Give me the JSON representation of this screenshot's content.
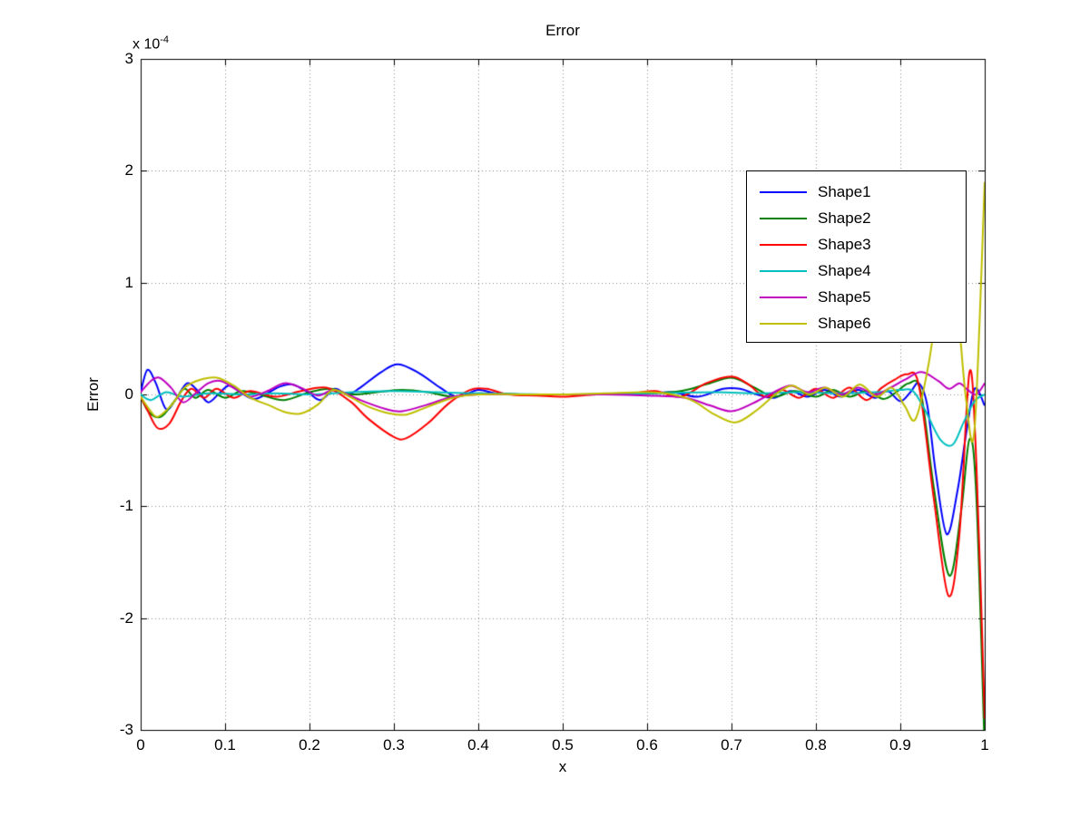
{
  "chart_data": {
    "type": "line",
    "title": "Error",
    "xlabel": "x",
    "ylabel": "Error",
    "y_scale_label": {
      "prefix": "x 10",
      "exponent": "-4"
    },
    "y_unit": "1e-4",
    "xlim": [
      0,
      1
    ],
    "ylim_e4": [
      -3,
      3
    ],
    "grid": true,
    "grid_style": "dotted",
    "legend_position": "upper-right-inside",
    "xticks": [
      "0",
      "0.1",
      "0.2",
      "0.3",
      "0.4",
      "0.5",
      "0.6",
      "0.7",
      "0.8",
      "0.9",
      "1"
    ],
    "yticks": [
      "3",
      "2",
      "1",
      "0",
      "-1",
      "-2",
      "-3"
    ],
    "series": [
      {
        "name": "Shape1",
        "color": "#0000FF",
        "points": [
          [
            0,
            0.02
          ],
          [
            0.008,
            0.22
          ],
          [
            0.018,
            0.1
          ],
          [
            0.03,
            -0.13
          ],
          [
            0.042,
            -0.04
          ],
          [
            0.055,
            0.1
          ],
          [
            0.068,
            0.03
          ],
          [
            0.08,
            -0.07
          ],
          [
            0.093,
            0.01
          ],
          [
            0.105,
            0.08
          ],
          [
            0.12,
            0.01
          ],
          [
            0.135,
            -0.04
          ],
          [
            0.15,
            0.01
          ],
          [
            0.165,
            0.07
          ],
          [
            0.18,
            0.09
          ],
          [
            0.198,
            0.02
          ],
          [
            0.213,
            -0.05
          ],
          [
            0.23,
            0.05
          ],
          [
            0.245,
            0.0
          ],
          [
            0.26,
            0.06
          ],
          [
            0.285,
            0.2
          ],
          [
            0.305,
            0.27
          ],
          [
            0.33,
            0.19
          ],
          [
            0.355,
            0.06
          ],
          [
            0.375,
            -0.02
          ],
          [
            0.4,
            0.04
          ],
          [
            0.42,
            0.01
          ],
          [
            0.45,
            0.0
          ],
          [
            0.5,
            0.0
          ],
          [
            0.55,
            0.0
          ],
          [
            0.6,
            0.01
          ],
          [
            0.63,
            0.02
          ],
          [
            0.66,
            -0.02
          ],
          [
            0.69,
            0.05
          ],
          [
            0.71,
            0.05
          ],
          [
            0.73,
            0.0
          ],
          [
            0.75,
            -0.03
          ],
          [
            0.77,
            0.03
          ],
          [
            0.79,
            -0.02
          ],
          [
            0.81,
            0.04
          ],
          [
            0.83,
            -0.02
          ],
          [
            0.85,
            0.04
          ],
          [
            0.87,
            -0.03
          ],
          [
            0.885,
            0.03
          ],
          [
            0.9,
            -0.06
          ],
          [
            0.912,
            0.02
          ],
          [
            0.922,
            0.1
          ],
          [
            0.932,
            -0.1
          ],
          [
            0.942,
            -0.7
          ],
          [
            0.955,
            -1.25
          ],
          [
            0.968,
            -0.85
          ],
          [
            0.978,
            -0.35
          ],
          [
            0.988,
            0.05
          ],
          [
            1,
            -0.1
          ]
        ]
      },
      {
        "name": "Shape2",
        "color": "#008000",
        "points": [
          [
            0,
            -0.02
          ],
          [
            0.01,
            -0.16
          ],
          [
            0.024,
            -0.2
          ],
          [
            0.04,
            -0.06
          ],
          [
            0.052,
            0.05
          ],
          [
            0.065,
            -0.03
          ],
          [
            0.08,
            0.04
          ],
          [
            0.1,
            -0.03
          ],
          [
            0.12,
            0.03
          ],
          [
            0.145,
            -0.01
          ],
          [
            0.17,
            -0.05
          ],
          [
            0.2,
            0.02
          ],
          [
            0.225,
            0.05
          ],
          [
            0.25,
            0.0
          ],
          [
            0.28,
            0.02
          ],
          [
            0.31,
            0.04
          ],
          [
            0.34,
            0.02
          ],
          [
            0.37,
            -0.02
          ],
          [
            0.4,
            0.01
          ],
          [
            0.45,
            0.0
          ],
          [
            0.5,
            0.0
          ],
          [
            0.55,
            0.0
          ],
          [
            0.6,
            0.01
          ],
          [
            0.64,
            0.03
          ],
          [
            0.67,
            0.09
          ],
          [
            0.7,
            0.15
          ],
          [
            0.725,
            0.07
          ],
          [
            0.75,
            -0.02
          ],
          [
            0.775,
            0.03
          ],
          [
            0.8,
            -0.02
          ],
          [
            0.82,
            0.04
          ],
          [
            0.84,
            -0.02
          ],
          [
            0.86,
            0.03
          ],
          [
            0.88,
            -0.04
          ],
          [
            0.895,
            0.02
          ],
          [
            0.91,
            0.1
          ],
          [
            0.924,
            0.03
          ],
          [
            0.94,
            -0.85
          ],
          [
            0.958,
            -1.62
          ],
          [
            0.972,
            -1.05
          ],
          [
            0.982,
            -0.4
          ],
          [
            0.99,
            -0.9
          ],
          [
            1,
            -3.2
          ]
        ]
      },
      {
        "name": "Shape3",
        "color": "#FF0000",
        "points": [
          [
            0,
            -0.02
          ],
          [
            0.008,
            -0.14
          ],
          [
            0.02,
            -0.3
          ],
          [
            0.034,
            -0.26
          ],
          [
            0.048,
            -0.06
          ],
          [
            0.06,
            0.05
          ],
          [
            0.075,
            -0.03
          ],
          [
            0.09,
            0.05
          ],
          [
            0.11,
            -0.03
          ],
          [
            0.13,
            0.03
          ],
          [
            0.16,
            -0.02
          ],
          [
            0.19,
            0.03
          ],
          [
            0.22,
            0.06
          ],
          [
            0.248,
            -0.06
          ],
          [
            0.27,
            -0.22
          ],
          [
            0.3,
            -0.38
          ],
          [
            0.315,
            -0.39
          ],
          [
            0.34,
            -0.26
          ],
          [
            0.365,
            -0.08
          ],
          [
            0.39,
            0.04
          ],
          [
            0.41,
            0.05
          ],
          [
            0.435,
            0.0
          ],
          [
            0.47,
            -0.01
          ],
          [
            0.5,
            -0.02
          ],
          [
            0.54,
            0.0
          ],
          [
            0.58,
            0.01
          ],
          [
            0.61,
            0.03
          ],
          [
            0.64,
            -0.02
          ],
          [
            0.67,
            0.1
          ],
          [
            0.7,
            0.16
          ],
          [
            0.72,
            0.09
          ],
          [
            0.74,
            -0.02
          ],
          [
            0.76,
            0.04
          ],
          [
            0.78,
            -0.03
          ],
          [
            0.8,
            0.05
          ],
          [
            0.82,
            -0.03
          ],
          [
            0.84,
            0.06
          ],
          [
            0.86,
            -0.05
          ],
          [
            0.878,
            0.06
          ],
          [
            0.893,
            0.13
          ],
          [
            0.908,
            0.18
          ],
          [
            0.922,
            0.08
          ],
          [
            0.94,
            -0.95
          ],
          [
            0.957,
            -1.8
          ],
          [
            0.97,
            -1.25
          ],
          [
            0.982,
            0.2
          ],
          [
            0.99,
            -0.6
          ],
          [
            1,
            -2.9
          ]
        ]
      },
      {
        "name": "Shape4",
        "color": "#00BFBF",
        "points": [
          [
            0,
            0.0
          ],
          [
            0.012,
            -0.05
          ],
          [
            0.03,
            0.02
          ],
          [
            0.05,
            -0.02
          ],
          [
            0.08,
            0.01
          ],
          [
            0.12,
            0.0
          ],
          [
            0.16,
            0.01
          ],
          [
            0.2,
            0.0
          ],
          [
            0.25,
            0.02
          ],
          [
            0.3,
            0.03
          ],
          [
            0.35,
            0.02
          ],
          [
            0.4,
            0.01
          ],
          [
            0.5,
            0.0
          ],
          [
            0.6,
            0.01
          ],
          [
            0.68,
            0.02
          ],
          [
            0.73,
            0.01
          ],
          [
            0.78,
            0.02
          ],
          [
            0.83,
            0.01
          ],
          [
            0.87,
            0.02
          ],
          [
            0.9,
            0.04
          ],
          [
            0.915,
            0.03
          ],
          [
            0.93,
            -0.15
          ],
          [
            0.947,
            -0.4
          ],
          [
            0.962,
            -0.45
          ],
          [
            0.975,
            -0.25
          ],
          [
            0.988,
            -0.06
          ],
          [
            1,
            0.0
          ]
        ]
      },
      {
        "name": "Shape5",
        "color": "#BF00BF",
        "points": [
          [
            0,
            0.02
          ],
          [
            0.012,
            0.12
          ],
          [
            0.022,
            0.15
          ],
          [
            0.036,
            0.06
          ],
          [
            0.05,
            -0.07
          ],
          [
            0.065,
            0.01
          ],
          [
            0.08,
            0.1
          ],
          [
            0.095,
            0.12
          ],
          [
            0.112,
            0.05
          ],
          [
            0.13,
            -0.02
          ],
          [
            0.15,
            0.03
          ],
          [
            0.17,
            0.1
          ],
          [
            0.19,
            0.06
          ],
          [
            0.21,
            -0.01
          ],
          [
            0.23,
            0.04
          ],
          [
            0.26,
            -0.05
          ],
          [
            0.29,
            -0.13
          ],
          [
            0.31,
            -0.15
          ],
          [
            0.34,
            -0.09
          ],
          [
            0.37,
            -0.02
          ],
          [
            0.4,
            0.0
          ],
          [
            0.45,
            0.0
          ],
          [
            0.5,
            0.0
          ],
          [
            0.55,
            0.0
          ],
          [
            0.6,
            -0.01
          ],
          [
            0.645,
            -0.03
          ],
          [
            0.675,
            -0.1
          ],
          [
            0.7,
            -0.15
          ],
          [
            0.725,
            -0.08
          ],
          [
            0.75,
            0.02
          ],
          [
            0.77,
            0.08
          ],
          [
            0.79,
            0.02
          ],
          [
            0.81,
            0.06
          ],
          [
            0.83,
            0.0
          ],
          [
            0.85,
            0.06
          ],
          [
            0.87,
            0.0
          ],
          [
            0.888,
            0.06
          ],
          [
            0.905,
            0.13
          ],
          [
            0.925,
            0.2
          ],
          [
            0.945,
            0.12
          ],
          [
            0.958,
            0.05
          ],
          [
            0.97,
            0.1
          ],
          [
            0.98,
            0.04
          ],
          [
            0.99,
            0.0
          ],
          [
            1,
            0.1
          ]
        ]
      },
      {
        "name": "Shape6",
        "color": "#BFBF00",
        "points": [
          [
            0,
            -0.02
          ],
          [
            0.01,
            -0.13
          ],
          [
            0.02,
            -0.2
          ],
          [
            0.036,
            -0.1
          ],
          [
            0.052,
            0.06
          ],
          [
            0.07,
            0.13
          ],
          [
            0.09,
            0.15
          ],
          [
            0.11,
            0.08
          ],
          [
            0.13,
            -0.03
          ],
          [
            0.15,
            -0.09
          ],
          [
            0.172,
            -0.16
          ],
          [
            0.19,
            -0.17
          ],
          [
            0.21,
            -0.09
          ],
          [
            0.228,
            0.04
          ],
          [
            0.25,
            -0.03
          ],
          [
            0.27,
            -0.11
          ],
          [
            0.295,
            -0.17
          ],
          [
            0.315,
            -0.18
          ],
          [
            0.34,
            -0.11
          ],
          [
            0.37,
            -0.03
          ],
          [
            0.4,
            0.0
          ],
          [
            0.45,
            0.0
          ],
          [
            0.5,
            0.0
          ],
          [
            0.55,
            0.01
          ],
          [
            0.6,
            0.02
          ],
          [
            0.63,
            0.0
          ],
          [
            0.655,
            -0.06
          ],
          [
            0.68,
            -0.18
          ],
          [
            0.705,
            -0.25
          ],
          [
            0.73,
            -0.14
          ],
          [
            0.752,
            0.0
          ],
          [
            0.772,
            0.08
          ],
          [
            0.792,
            0.0
          ],
          [
            0.812,
            0.06
          ],
          [
            0.832,
            -0.02
          ],
          [
            0.852,
            0.09
          ],
          [
            0.872,
            -0.02
          ],
          [
            0.89,
            0.06
          ],
          [
            0.905,
            -0.1
          ],
          [
            0.918,
            -0.22
          ],
          [
            0.933,
            0.25
          ],
          [
            0.948,
            1.0
          ],
          [
            0.957,
            1.25
          ],
          [
            0.968,
            0.75
          ],
          [
            0.978,
            -0.05
          ],
          [
            0.988,
            -0.3
          ],
          [
            1,
            1.9
          ]
        ]
      }
    ]
  }
}
